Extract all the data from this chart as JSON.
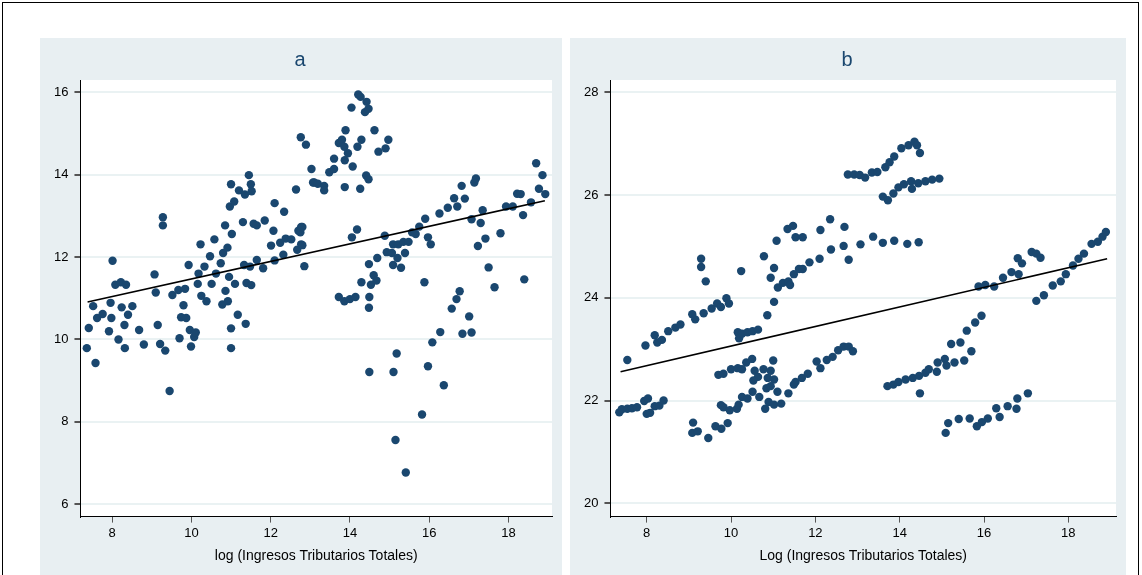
{
  "chart_data": [
    {
      "type": "scatter",
      "title": "a",
      "xlabel": "log (Ingresos Tributarios Totales)",
      "xlim": [
        7.2,
        19.1
      ],
      "xticks": [
        8,
        10,
        12,
        14,
        16,
        18
      ],
      "ylim": [
        5.7,
        16.3
      ],
      "yticks": [
        6,
        8,
        10,
        12,
        14,
        16
      ],
      "grid": "y",
      "series": [
        {
          "type": "scatter",
          "color": "#1a476f",
          "marker": "circle",
          "x": [
            7.36,
            7.41,
            7.52,
            7.58,
            7.62,
            7.76,
            7.92,
            7.96,
            7.98,
            8.01,
            8.08,
            8.16,
            8.22,
            8.24,
            8.31,
            8.32,
            8.35,
            8.4,
            8.51,
            8.68,
            8.8,
            9.07,
            9.1,
            9.15,
            9.21,
            9.28,
            9.28,
            9.34,
            9.45,
            9.52,
            9.67,
            9.7,
            9.74,
            9.8,
            9.84,
            9.87,
            9.93,
            9.96,
            9.99,
            10.07,
            10.11,
            10.16,
            10.18,
            10.23,
            10.25,
            10.33,
            10.38,
            10.47,
            10.51,
            10.58,
            10.62,
            10.74,
            10.78,
            10.8,
            10.85,
            10.86,
            10.91,
            10.92,
            10.95,
            10.97,
            11.0,
            11.0,
            11.0,
            11.02,
            11.08,
            11.1,
            11.17,
            11.2,
            11.3,
            11.33,
            11.35,
            11.37,
            11.39,
            11.45,
            11.48,
            11.5,
            11.52,
            11.51,
            11.57,
            11.65,
            11.65,
            11.81,
            11.85,
            12.01,
            12.07,
            12.1,
            12.1,
            12.24,
            12.32,
            12.34,
            12.38,
            12.52,
            12.64,
            12.67,
            12.7,
            12.77,
            12.77,
            12.76,
            12.85,
            12.89,
            13.03,
            13.07,
            12.75,
            12.8,
            12.8,
            13.1,
            13.19,
            13.35,
            13.35,
            13.48,
            13.6,
            13.6,
            13.72,
            13.8,
            13.86,
            13.89,
            13.87,
            13.87,
            13.95,
            13.72,
            13.86,
            14.0,
            14.05,
            14.07,
            14.04,
            14.14,
            14.18,
            14.19,
            14.21,
            14.27,
            14.26,
            14.29,
            14.29,
            14.38,
            14.42,
            14.41,
            14.47,
            14.47,
            14.48,
            14.49,
            14.48,
            14.49,
            14.53,
            14.62,
            14.6,
            14.67,
            14.69,
            14.72,
            14.88,
            14.9,
            14.93,
            14.97,
            15.06,
            15.09,
            15.09,
            15.1,
            15.15,
            15.18,
            15.2,
            15.22,
            15.29,
            15.35,
            15.39,
            15.41,
            15.48,
            15.57,
            15.66,
            15.75,
            15.82,
            15.88,
            15.9,
            15.97,
            15.97,
            16.04,
            16.08,
            16.26,
            16.28,
            16.37,
            16.47,
            16.57,
            16.63,
            16.69,
            16.71,
            16.77,
            16.82,
            16.84,
            16.9,
            17.01,
            17.07,
            17.07,
            17.14,
            17.18,
            17.23,
            17.3,
            17.35,
            17.42,
            17.5,
            17.65,
            17.8,
            17.94,
            18.11,
            18.22,
            18.31,
            18.37,
            18.4,
            18.57,
            18.7,
            18.77,
            18.86,
            18.93
          ],
          "values": [
            9.79,
            10.28,
            10.81,
            9.43,
            10.52,
            10.62,
            10.2,
            10.89,
            10.52,
            11.91,
            11.33,
            10.0,
            11.39,
            10.78,
            10.35,
            9.79,
            11.33,
            10.6,
            10.81,
            10.23,
            9.88,
            11.58,
            11.14,
            10.35,
            9.89,
            12.97,
            12.77,
            9.73,
            8.75,
            11.08,
            11.2,
            10.03,
            10.54,
            10.83,
            11.23,
            10.52,
            11.81,
            10.23,
            9.83,
            10.06,
            10.17,
            11.35,
            11.6,
            12.31,
            11.06,
            11.77,
            10.93,
            12.02,
            11.35,
            12.43,
            11.6,
            11.85,
            10.85,
            12.1,
            12.77,
            11.18,
            12.23,
            10.93,
            11.52,
            13.23,
            10.27,
            9.79,
            13.77,
            12.56,
            13.35,
            11.35,
            10.6,
            13.62,
            12.85,
            11.81,
            13.52,
            10.38,
            11.37,
            13.99,
            11.77,
            13.77,
            13.6,
            11.32,
            12.81,
            12.77,
            11.93,
            11.73,
            12.89,
            12.28,
            12.64,
            13.31,
            11.92,
            12.35,
            12.06,
            13.1,
            12.45,
            12.43,
            13.64,
            12.18,
            12.64,
            12.73,
            12.31,
            14.91,
            11.78,
            14.73,
            14.14,
            13.81,
            12.6,
            12.73,
            12.29,
            13.81,
            13.78,
            13.73,
            13.62,
            14.06,
            14.14,
            14.39,
            14.77,
            14.85,
            14.68,
            15.08,
            13.7,
            14.35,
            14.52,
            11.03,
            10.93,
            10.98,
            12.48,
            14.2,
            15.63,
            11.03,
            12.67,
            14.68,
            15.95,
            15.89,
            13.66,
            14.85,
            11.39,
            15.52,
            15.77,
            13.98,
            15.6,
            13.89,
            11.83,
            11.03,
            10.77,
            9.21,
            11.33,
            15.08,
            11.56,
            11.43,
            11.98,
            14.56,
            12.52,
            14.64,
            12.12,
            14.85,
            12.1,
            12.31,
            11.81,
            9.21,
            7.56,
            9.66,
            11.98,
            12.31,
            11.74,
            12.37,
            12.1,
            6.77,
            12.37,
            12.6,
            12.56,
            12.74,
            8.18,
            11.39,
            12.93,
            9.35,
            12.48,
            12.31,
            9.93,
            13.06,
            10.18,
            8.89,
            13.2,
            10.75,
            13.43,
            10.98,
            13.23,
            11.17,
            13.73,
            10.14,
            13.42,
            10.56,
            12.92,
            10.17,
            13.81,
            13.91,
            12.27,
            12.83,
            13.14,
            12.45,
            11.75,
            11.27,
            12.58,
            13.23,
            13.23,
            13.54,
            13.53,
            13.02,
            11.46,
            13.33,
            14.28,
            13.66,
            13.99,
            13.53
          ]
        },
        {
          "type": "line",
          "color": "#000000",
          "marker": "none",
          "x": [
            7.38,
            18.92
          ],
          "values": [
            10.91,
            13.37
          ]
        }
      ]
    },
    {
      "type": "scatter",
      "title": "b",
      "xlabel": "Log (Ingresos Tributarios Totales)",
      "xlim": [
        7.14,
        19.13
      ],
      "xticks": [
        8,
        10,
        12,
        14,
        16,
        18
      ],
      "ylim": [
        19.74,
        28.24
      ],
      "yticks": [
        20,
        22,
        24,
        26,
        28
      ],
      "grid": "y",
      "series": [
        {
          "type": "scatter",
          "color": "#1a476f",
          "marker": "circle",
          "x": [
            7.35,
            7.41,
            7.54,
            7.65,
            7.77,
            7.94,
            8.03,
            8.0,
            8.08,
            8.19,
            8.3,
            8.4,
            7.54,
            7.97,
            8.19,
            8.25,
            8.36,
            8.51,
            8.68,
            8.8,
            9.08,
            9.15,
            9.35,
            9.4,
            9.29,
            9.29,
            9.54,
            9.67,
            9.76,
            9.89,
            9.95,
            9.1,
            9.08,
            9.21,
            9.46,
            9.63,
            9.77,
            9.92,
            9.76,
            9.82,
            9.97,
            10.14,
            10.18,
            10.26,
            10.39,
            10.51,
            10.67,
            10.81,
            10.89,
            11.02,
            11.1,
            11.19,
            11.36,
            11.49,
            11.53,
            11.68,
            11.82,
            12.03,
            12.12,
            12.27,
            12.41,
            12.54,
            12.67,
            12.79,
            12.89,
            9.7,
            9.82,
            10.0,
            10.16,
            10.26,
            10.36,
            10.5,
            10.56,
            10.64,
            10.53,
            10.77,
            10.87,
            10.94,
            11.0,
            10.84,
            11.02,
            10.94,
            10.16,
            10.19,
            10.26,
            10.39,
            10.51,
            10.64,
            10.24,
            10.78,
            10.86,
            10.94,
            11.02,
            11.02,
            11.08,
            11.11,
            11.23,
            11.36,
            11.4,
            11.34,
            11.47,
            11.53,
            11.49,
            11.61,
            11.7,
            11.7,
            11.86,
            12.1,
            12.12,
            12.35,
            12.37,
            12.67,
            12.69,
            12.79,
            13.07,
            12.77,
            12.92,
            13.05,
            13.18,
            13.34,
            13.47,
            13.66,
            13.76,
            13.87,
            14.04,
            14.21,
            14.35,
            14.41,
            14.48,
            13.6,
            13.72,
            13.85,
            13.97,
            14.1,
            14.27,
            14.29,
            14.44,
            14.61,
            14.77,
            14.94,
            13.37,
            13.6,
            13.87,
            14.18,
            14.45,
            13.71,
            13.85,
            13.97,
            14.14,
            14.31,
            14.46,
            14.48,
            14.61,
            14.69,
            14.88,
            14.9,
            15.07,
            15.11,
            15.22,
            15.3,
            15.44,
            15.53,
            15.7,
            15.59,
            15.79,
            15.94,
            15.09,
            15.15,
            15.4,
            15.66,
            15.83,
            15.95,
            16.09,
            16.29,
            16.37,
            16.56,
            16.77,
            16.79,
            17.04,
            15.87,
            16.03,
            16.24,
            16.45,
            16.65,
            16.82,
            16.8,
            16.9,
            17.13,
            17.24,
            17.34,
            17.24,
            17.42,
            17.63,
            17.82,
            17.94,
            18.11,
            18.24,
            18.37,
            18.55,
            18.7,
            18.81,
            18.89
          ],
          "values": [
            21.77,
            21.83,
            21.84,
            21.85,
            21.87,
            21.99,
            22.04,
            21.74,
            21.76,
            21.89,
            21.9,
            22.0,
            22.79,
            23.07,
            23.27,
            23.13,
            23.18,
            23.35,
            23.42,
            23.48,
            23.68,
            23.58,
            23.7,
            24.32,
            24.76,
            24.6,
            23.79,
            23.89,
            23.82,
            23.99,
            23.89,
            21.57,
            21.37,
            21.4,
            21.27,
            21.5,
            21.45,
            21.56,
            21.91,
            21.87,
            21.81,
            21.84,
            21.92,
            22.07,
            22.04,
            22.17,
            22.07,
            21.84,
            21.97,
            21.92,
            22.17,
            21.94,
            22.14,
            22.31,
            22.36,
            22.44,
            22.52,
            22.76,
            22.63,
            22.79,
            22.85,
            22.98,
            23.05,
            23.05,
            22.96,
            22.5,
            22.52,
            22.61,
            22.63,
            22.61,
            22.74,
            22.81,
            22.58,
            22.46,
            22.39,
            22.61,
            22.44,
            22.58,
            22.78,
            22.24,
            22.41,
            22.28,
            23.33,
            23.21,
            23.3,
            23.33,
            23.35,
            23.38,
            24.52,
            24.81,
            23.66,
            24.39,
            24.58,
            23.92,
            25.11,
            24.2,
            24.29,
            24.32,
            24.25,
            25.34,
            25.4,
            25.18,
            24.46,
            24.56,
            25.18,
            24.56,
            24.69,
            24.76,
            25.32,
            25.53,
            24.94,
            25.01,
            25.38,
            24.74,
            25.04,
            26.4,
            26.4,
            26.39,
            26.34,
            26.44,
            26.45,
            26.54,
            26.64,
            26.75,
            26.91,
            26.97,
            27.04,
            26.97,
            26.82,
            25.97,
            25.9,
            26.03,
            26.15,
            26.21,
            26.27,
            26.12,
            26.23,
            26.27,
            26.3,
            26.32,
            25.19,
            25.07,
            25.11,
            25.05,
            25.08,
            22.28,
            22.31,
            22.36,
            22.41,
            22.44,
            22.48,
            22.14,
            22.54,
            22.61,
            22.56,
            22.74,
            22.81,
            22.68,
            23.1,
            22.74,
            23.13,
            22.78,
            22.96,
            23.36,
            23.52,
            23.65,
            21.37,
            21.56,
            21.64,
            21.65,
            21.5,
            21.58,
            21.65,
            21.85,
            21.68,
            21.89,
            21.84,
            22.04,
            22.14,
            24.22,
            24.25,
            24.22,
            24.39,
            24.5,
            24.46,
            24.77,
            24.67,
            24.89,
            24.86,
            24.78,
            23.94,
            24.05,
            24.24,
            24.32,
            24.46,
            24.63,
            24.76,
            24.86,
            25.05,
            25.09,
            25.19,
            25.28
          ]
        },
        {
          "type": "line",
          "color": "#000000",
          "marker": "none",
          "x": [
            7.38,
            18.92
          ],
          "values": [
            22.56,
            24.76
          ]
        }
      ]
    }
  ]
}
